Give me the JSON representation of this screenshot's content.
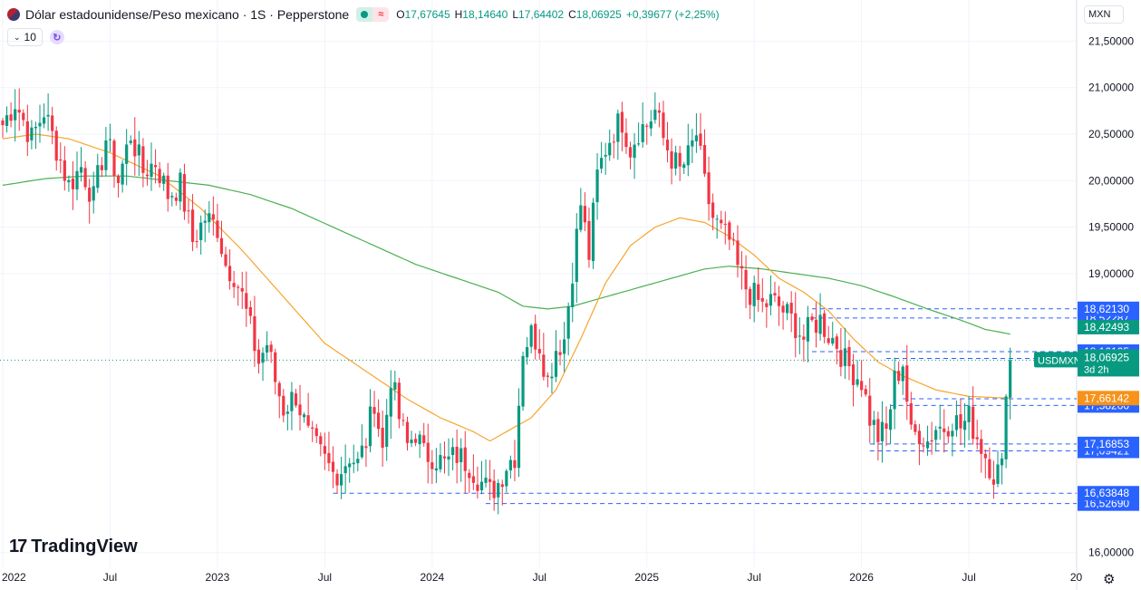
{
  "header": {
    "symbol_title": "Dólar estadounidense/Peso mexicano · 1S · Pepperstone",
    "flag_icon": "us-mx-flag-icon",
    "ohlc": [
      {
        "k": "O",
        "v": "17,67645"
      },
      {
        "k": "H",
        "v": "18,14640"
      },
      {
        "k": "L",
        "v": "17,64402"
      },
      {
        "k": "C",
        "v": "18,06925"
      },
      {
        "k": "",
        "v": "+0,39677 (+2,25%)"
      }
    ],
    "up_color": "#089981"
  },
  "indicator": {
    "value": "10"
  },
  "currency": {
    "label": "MXN"
  },
  "logo": {
    "mark": "17",
    "text": "TradingView"
  },
  "chart_data": {
    "type": "candlestick",
    "ylim": [
      15.9,
      21.65
    ],
    "y_ticks": [
      {
        "v": 21.5,
        "label": "21,50000"
      },
      {
        "v": 21.0,
        "label": "21,00000"
      },
      {
        "v": 20.5,
        "label": "20,50000"
      },
      {
        "v": 20.0,
        "label": "20,00000"
      },
      {
        "v": 19.5,
        "label": "19,50000"
      },
      {
        "v": 19.0,
        "label": "19,00000"
      },
      {
        "v": 16.0,
        "label": "16,00000"
      }
    ],
    "x_ticks": [
      "2022",
      "Jul",
      "2023",
      "Jul",
      "2024",
      "Jul",
      "2025",
      "Jul",
      "2026",
      "Jul",
      "20"
    ],
    "x_tick_t": [
      0,
      26,
      52,
      78,
      104,
      130,
      156,
      182,
      208,
      234,
      260
    ],
    "anchors": [
      [
        0,
        20.6
      ],
      [
        3,
        20.85
      ],
      [
        7,
        20.45
      ],
      [
        10,
        20.75
      ],
      [
        13,
        20.35
      ],
      [
        16,
        19.95
      ],
      [
        19,
        20.15
      ],
      [
        22,
        19.8
      ],
      [
        25,
        20.45
      ],
      [
        28,
        20.0
      ],
      [
        31,
        20.5
      ],
      [
        34,
        20.1
      ],
      [
        37,
        20.2
      ],
      [
        40,
        19.85
      ],
      [
        43,
        19.95
      ],
      [
        46,
        19.35
      ],
      [
        49,
        19.6
      ],
      [
        52,
        19.5
      ],
      [
        54,
        19.1
      ],
      [
        56,
        19.0
      ],
      [
        58,
        18.75
      ],
      [
        60,
        18.4
      ],
      [
        62,
        18.05
      ],
      [
        64,
        18.25
      ],
      [
        66,
        17.85
      ],
      [
        68,
        17.55
      ],
      [
        71,
        17.7
      ],
      [
        74,
        17.25
      ],
      [
        77,
        17.05
      ],
      [
        80,
        16.85
      ],
      [
        82,
        16.9
      ],
      [
        84,
        17.05
      ],
      [
        86,
        16.95
      ],
      [
        88,
        17.2
      ],
      [
        90,
        17.65
      ],
      [
        92,
        17.1
      ],
      [
        94,
        17.9
      ],
      [
        96,
        17.45
      ],
      [
        98,
        17.15
      ],
      [
        100,
        17.3
      ],
      [
        102,
        17.05
      ],
      [
        104,
        17.05
      ],
      [
        107,
        16.95
      ],
      [
        110,
        17.05
      ],
      [
        113,
        16.95
      ],
      [
        116,
        16.75
      ],
      [
        118,
        16.65
      ],
      [
        120,
        16.75
      ],
      [
        122,
        16.95
      ],
      [
        124,
        17.05
      ],
      [
        126,
        18.2
      ],
      [
        128,
        18.35
      ],
      [
        130,
        18.25
      ],
      [
        132,
        17.85
      ],
      [
        134,
        18.2
      ],
      [
        136,
        18.3
      ],
      [
        138,
        19.05
      ],
      [
        140,
        19.75
      ],
      [
        142,
        19.2
      ],
      [
        144,
        20.05
      ],
      [
        146,
        20.35
      ],
      [
        148,
        20.55
      ],
      [
        150,
        20.65
      ],
      [
        152,
        20.35
      ],
      [
        154,
        20.55
      ],
      [
        156,
        20.6
      ],
      [
        158,
        20.75
      ],
      [
        160,
        20.45
      ],
      [
        162,
        20.25
      ],
      [
        164,
        20.1
      ],
      [
        166,
        20.25
      ],
      [
        168,
        20.5
      ],
      [
        170,
        19.95
      ],
      [
        172,
        19.6
      ],
      [
        174,
        19.45
      ],
      [
        176,
        19.35
      ],
      [
        178,
        19.05
      ],
      [
        180,
        18.85
      ],
      [
        182,
        18.75
      ],
      [
        184,
        18.65
      ],
      [
        186,
        18.7
      ],
      [
        188,
        18.65
      ],
      [
        190,
        18.55
      ],
      [
        192,
        18.45
      ],
      [
        194,
        18.3
      ],
      [
        196,
        18.45
      ],
      [
        198,
        18.5
      ],
      [
        200,
        18.35
      ],
      [
        202,
        18.25
      ],
      [
        204,
        18.05
      ],
      [
        206,
        17.95
      ],
      [
        208,
        17.85
      ],
      [
        210,
        17.45
      ],
      [
        212,
        17.25
      ],
      [
        214,
        17.3
      ],
      [
        216,
        17.85
      ],
      [
        218,
        18.05
      ],
      [
        220,
        17.25
      ],
      [
        222,
        17.3
      ],
      [
        224,
        17.2
      ],
      [
        226,
        17.35
      ],
      [
        228,
        17.35
      ],
      [
        230,
        17.45
      ],
      [
        232,
        17.35
      ],
      [
        234,
        17.45
      ],
      [
        236,
        17.25
      ],
      [
        238,
        17.05
      ],
      [
        240,
        16.85
      ],
      [
        242,
        16.9
      ],
      [
        243,
        17.68
      ],
      [
        244,
        18.07
      ]
    ],
    "ma50_anchors": [
      [
        0,
        20.45
      ],
      [
        8,
        20.5
      ],
      [
        16,
        20.45
      ],
      [
        26,
        20.3
      ],
      [
        38,
        20.05
      ],
      [
        48,
        19.7
      ],
      [
        58,
        19.25
      ],
      [
        68,
        18.75
      ],
      [
        78,
        18.25
      ],
      [
        88,
        17.95
      ],
      [
        98,
        17.65
      ],
      [
        106,
        17.45
      ],
      [
        114,
        17.3
      ],
      [
        118,
        17.2
      ],
      [
        122,
        17.3
      ],
      [
        128,
        17.45
      ],
      [
        134,
        17.75
      ],
      [
        140,
        18.3
      ],
      [
        146,
        18.9
      ],
      [
        152,
        19.3
      ],
      [
        158,
        19.5
      ],
      [
        164,
        19.6
      ],
      [
        170,
        19.55
      ],
      [
        176,
        19.4
      ],
      [
        182,
        19.2
      ],
      [
        188,
        18.95
      ],
      [
        194,
        18.8
      ],
      [
        200,
        18.6
      ],
      [
        206,
        18.3
      ],
      [
        212,
        18.05
      ],
      [
        218,
        17.9
      ],
      [
        226,
        17.75
      ],
      [
        234,
        17.68
      ],
      [
        244,
        17.66
      ]
    ],
    "ma200_anchors": [
      [
        0,
        19.95
      ],
      [
        10,
        20.02
      ],
      [
        20,
        20.05
      ],
      [
        30,
        20.05
      ],
      [
        40,
        20.0
      ],
      [
        50,
        19.95
      ],
      [
        60,
        19.85
      ],
      [
        70,
        19.7
      ],
      [
        80,
        19.5
      ],
      [
        90,
        19.3
      ],
      [
        100,
        19.1
      ],
      [
        110,
        18.95
      ],
      [
        120,
        18.8
      ],
      [
        126,
        18.65
      ],
      [
        132,
        18.62
      ],
      [
        138,
        18.65
      ],
      [
        146,
        18.75
      ],
      [
        154,
        18.85
      ],
      [
        162,
        18.95
      ],
      [
        170,
        19.05
      ],
      [
        176,
        19.08
      ],
      [
        184,
        19.05
      ],
      [
        192,
        19.0
      ],
      [
        200,
        18.95
      ],
      [
        208,
        18.87
      ],
      [
        216,
        18.75
      ],
      [
        224,
        18.62
      ],
      [
        232,
        18.5
      ],
      [
        238,
        18.4
      ],
      [
        244,
        18.35
      ]
    ],
    "last_price": 18.06925,
    "levels": [
      {
        "v": 16.5269,
        "label": "16,52690"
      },
      {
        "v": 16.63848,
        "label": "16,63848"
      },
      {
        "v": 17.09421,
        "label": "17,09421"
      },
      {
        "v": 17.16853,
        "label": "17,16853"
      },
      {
        "v": 17.582,
        "label": "17,58200"
      },
      {
        "v": 17.65439,
        "label": "17,65439"
      },
      {
        "v": 18.08744,
        "label": "18,08744"
      },
      {
        "v": 18.16105,
        "label": "18,16105"
      },
      {
        "v": 18.52287,
        "label": "18,52287"
      },
      {
        "v": 18.6213,
        "label": "18,62130"
      }
    ],
    "ma_tags": [
      {
        "v": 18.42493,
        "label": "18,42493",
        "color": "#089981"
      },
      {
        "v": 17.66142,
        "label": "17,66142",
        "color": "#f7931a"
      }
    ],
    "price_tag": {
      "symbol": "USDMXN",
      "label": "18,06925",
      "countdown": "3d 2h"
    },
    "colors": {
      "up": "#089981",
      "down": "#f23645",
      "ma50": "#f7a530",
      "ma200": "#4caf50",
      "level": "#2962ff",
      "grid": "#f0f3fa"
    }
  }
}
